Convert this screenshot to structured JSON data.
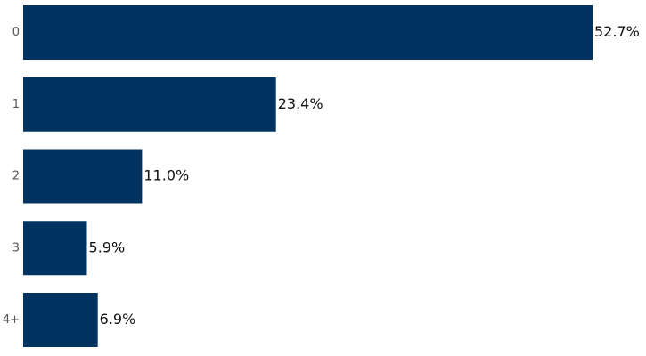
{
  "chart_data": {
    "type": "bar",
    "orientation": "horizontal",
    "categories": [
      "0",
      "1",
      "2",
      "3",
      "4+"
    ],
    "values": [
      52.7,
      23.4,
      11.0,
      5.9,
      6.9
    ],
    "value_labels": [
      "52.7%",
      "23.4%",
      "11.0%",
      "5.9%",
      "6.9%"
    ],
    "value_unit": "%",
    "title": "",
    "xlabel": "",
    "ylabel": "",
    "xlim": [
      0,
      52.7
    ],
    "grid": false,
    "legend": "none",
    "bar_color": "#00335f"
  }
}
